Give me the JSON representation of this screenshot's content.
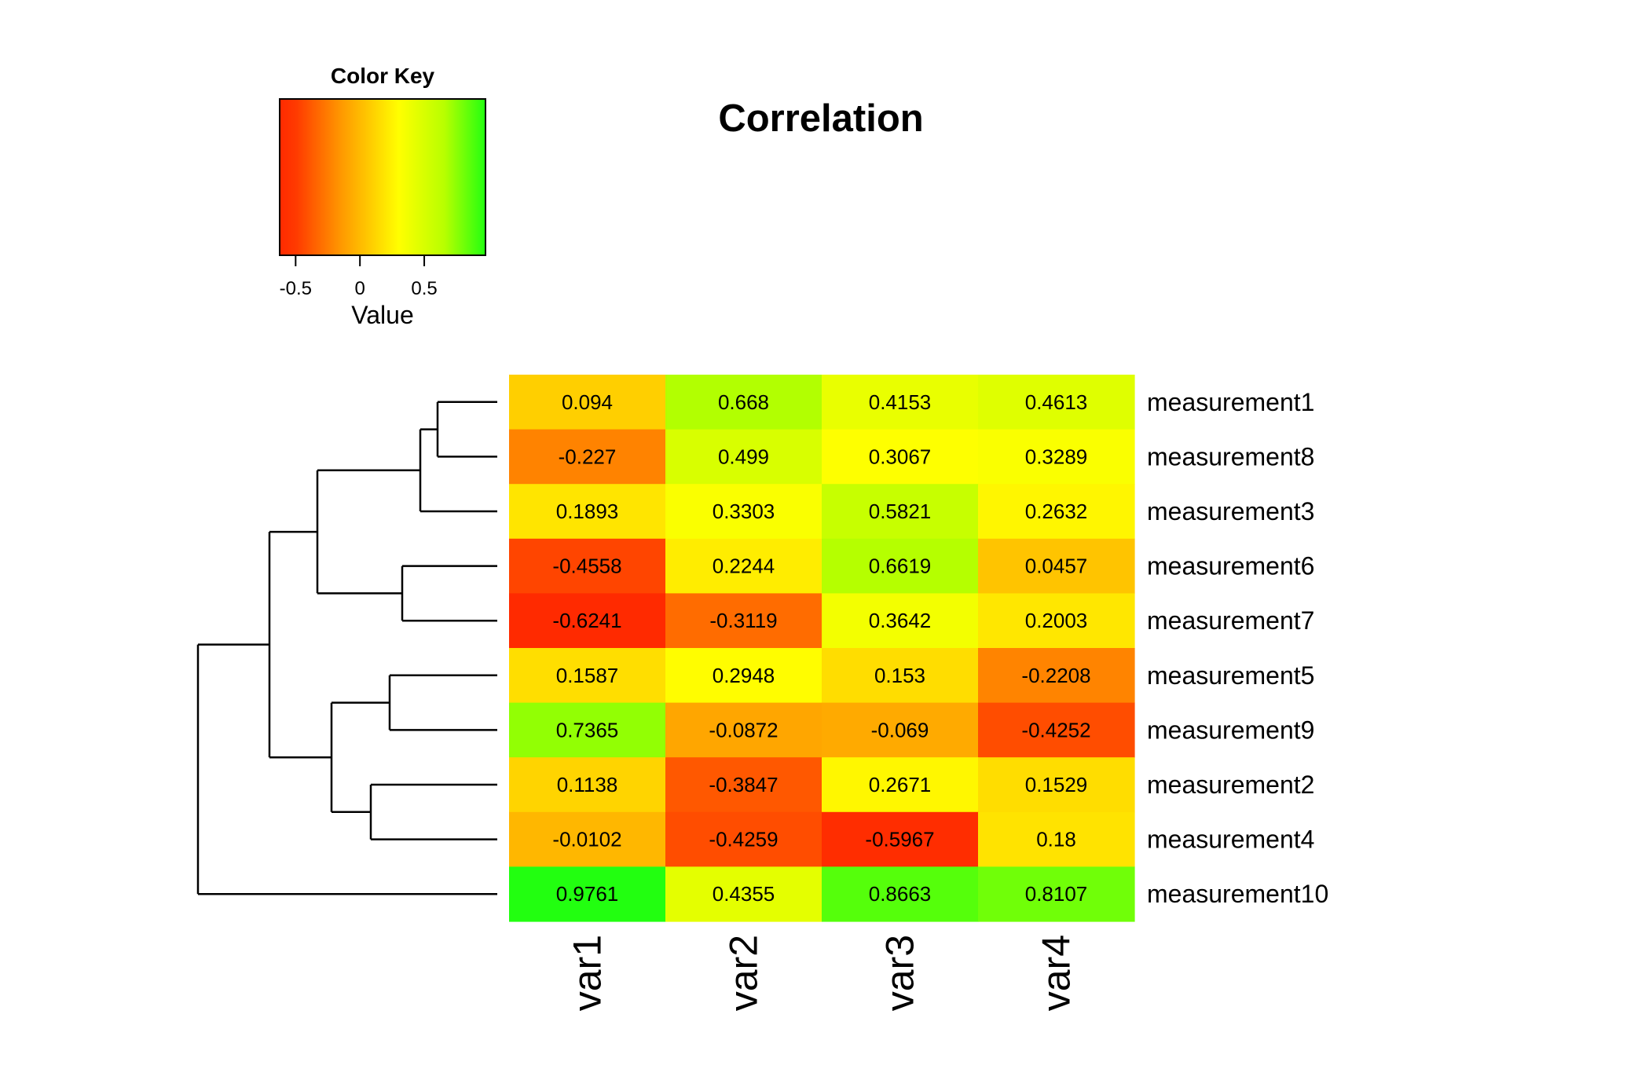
{
  "chart_data": {
    "type": "heatmap",
    "title": "Correlation",
    "columns": [
      "var1",
      "var2",
      "var3",
      "var4"
    ],
    "rows": [
      "measurement1",
      "measurement8",
      "measurement3",
      "measurement6",
      "measurement7",
      "measurement5",
      "measurement9",
      "measurement2",
      "measurement4",
      "measurement10"
    ],
    "values": [
      [
        0.094,
        0.668,
        0.4153,
        0.4613
      ],
      [
        -0.227,
        0.499,
        0.3067,
        0.3289
      ],
      [
        0.1893,
        0.3303,
        0.5821,
        0.2632
      ],
      [
        -0.4558,
        0.2244,
        0.6619,
        0.0457
      ],
      [
        -0.6241,
        -0.3119,
        0.3642,
        0.2003
      ],
      [
        0.1587,
        0.2948,
        0.153,
        -0.2208
      ],
      [
        0.7365,
        -0.0872,
        -0.069,
        -0.4252
      ],
      [
        0.1138,
        -0.3847,
        0.2671,
        0.1529
      ],
      [
        -0.0102,
        -0.4259,
        -0.5967,
        0.18
      ],
      [
        0.9761,
        0.4355,
        0.8663,
        0.8107
      ]
    ],
    "cell_labels": [
      [
        "0.094",
        "0.668",
        "0.4153",
        "0.4613"
      ],
      [
        "-0.227",
        "0.499",
        "0.3067",
        "0.3289"
      ],
      [
        "0.1893",
        "0.3303",
        "0.5821",
        "0.2632"
      ],
      [
        "-0.4558",
        "0.2244",
        "0.6619",
        "0.0457"
      ],
      [
        "-0.6241",
        "-0.3119",
        "0.3642",
        "0.2003"
      ],
      [
        "0.1587",
        "0.2948",
        "0.153",
        "-0.2208"
      ],
      [
        "0.7365",
        "-0.0872",
        "-0.069",
        "-0.4252"
      ],
      [
        "0.1138",
        "-0.3847",
        "0.2671",
        "0.1529"
      ],
      [
        "-0.0102",
        "-0.4259",
        "-0.5967",
        "0.18"
      ],
      [
        "0.9761",
        "0.4355",
        "0.8663",
        "0.8107"
      ]
    ],
    "color_key": {
      "title": "Color Key",
      "xlabel": "Value",
      "range": [
        -0.6241,
        0.9761
      ],
      "ticks": [
        -0.5,
        0,
        0.5
      ],
      "tick_labels": [
        "-0.5",
        "0",
        "0.5"
      ],
      "colors": [
        "#ff2a00",
        "#ffff00",
        "#00ff00"
      ]
    },
    "row_dendrogram": true,
    "grid": false
  }
}
